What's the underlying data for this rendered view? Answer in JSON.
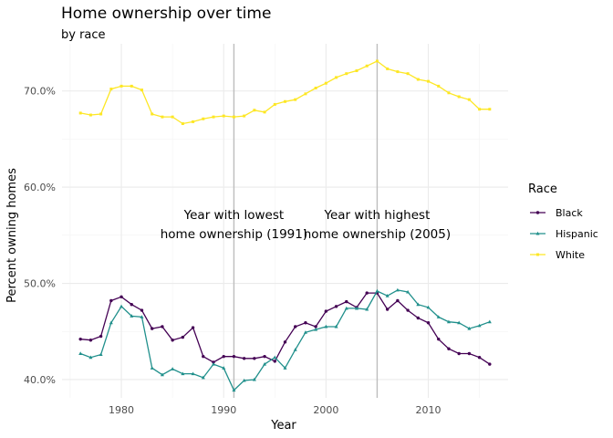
{
  "chart_data": {
    "type": "line",
    "title": "Home ownership over time",
    "subtitle": "by race",
    "xlabel": "Year",
    "ylabel": "Percent owning homes",
    "xlim": [
      1974.2,
      2017.8
    ],
    "ylim": [
      38.1,
      74.9
    ],
    "x_ticks": [
      1980,
      1990,
      2000,
      2010
    ],
    "x_tick_labels": [
      "1980",
      "1990",
      "2000",
      "2010"
    ],
    "y_ticks": [
      40,
      50,
      60,
      70
    ],
    "y_tick_labels": [
      "40.0%",
      "50.0%",
      "60.0%",
      "70.0%"
    ],
    "grid": true,
    "legend_title": "Race",
    "legend_position": "right",
    "x": [
      1976,
      1977,
      1978,
      1979,
      1980,
      1981,
      1982,
      1983,
      1984,
      1985,
      1986,
      1987,
      1988,
      1989,
      1990,
      1991,
      1992,
      1993,
      1994,
      1995,
      1996,
      1997,
      1998,
      1999,
      2000,
      2001,
      2002,
      2003,
      2004,
      2005,
      2006,
      2007,
      2008,
      2009,
      2010,
      2011,
      2012,
      2013,
      2014,
      2015,
      2016
    ],
    "series": [
      {
        "name": "Black",
        "color": "#440154",
        "marker": "circle",
        "values": [
          44.2,
          44.1,
          44.5,
          48.2,
          48.6,
          47.8,
          47.2,
          45.3,
          45.5,
          44.1,
          44.4,
          45.4,
          42.4,
          41.8,
          42.4,
          42.4,
          42.2,
          42.2,
          42.4,
          41.9,
          43.9,
          45.5,
          45.9,
          45.5,
          47.1,
          47.6,
          48.1,
          47.5,
          49.0,
          49.0,
          47.3,
          48.2,
          47.2,
          46.4,
          45.9,
          44.2,
          43.2,
          42.7,
          42.7,
          42.3,
          41.6
        ]
      },
      {
        "name": "Hispanic",
        "color": "#21908C",
        "marker": "triangle",
        "values": [
          42.7,
          42.3,
          42.6,
          45.9,
          47.6,
          46.6,
          46.5,
          41.2,
          40.5,
          41.1,
          40.6,
          40.6,
          40.2,
          41.6,
          41.2,
          38.9,
          39.9,
          40.0,
          41.6,
          42.3,
          41.2,
          43.1,
          44.9,
          45.2,
          45.5,
          45.5,
          47.4,
          47.4,
          47.3,
          49.2,
          48.7,
          49.3,
          49.1,
          47.8,
          47.5,
          46.5,
          46.0,
          45.9,
          45.3,
          45.6,
          46.0
        ]
      },
      {
        "name": "White",
        "color": "#FDE725",
        "marker": "square",
        "values": [
          67.7,
          67.5,
          67.6,
          70.2,
          70.5,
          70.5,
          70.1,
          67.6,
          67.3,
          67.3,
          66.6,
          66.8,
          67.1,
          67.3,
          67.4,
          67.3,
          67.4,
          68.0,
          67.8,
          68.6,
          68.9,
          69.1,
          69.7,
          70.3,
          70.8,
          71.4,
          71.8,
          72.1,
          72.6,
          73.1,
          72.3,
          72.0,
          71.8,
          71.2,
          71.0,
          70.5,
          69.8,
          69.4,
          69.1,
          68.1,
          68.1
        ]
      }
    ],
    "reference_lines": [
      {
        "x": 1991,
        "label": [
          "Year with lowest",
          "home ownership (1991)"
        ]
      },
      {
        "x": 2005,
        "label": [
          "Year with highest",
          "home ownership (2005)"
        ]
      }
    ]
  }
}
